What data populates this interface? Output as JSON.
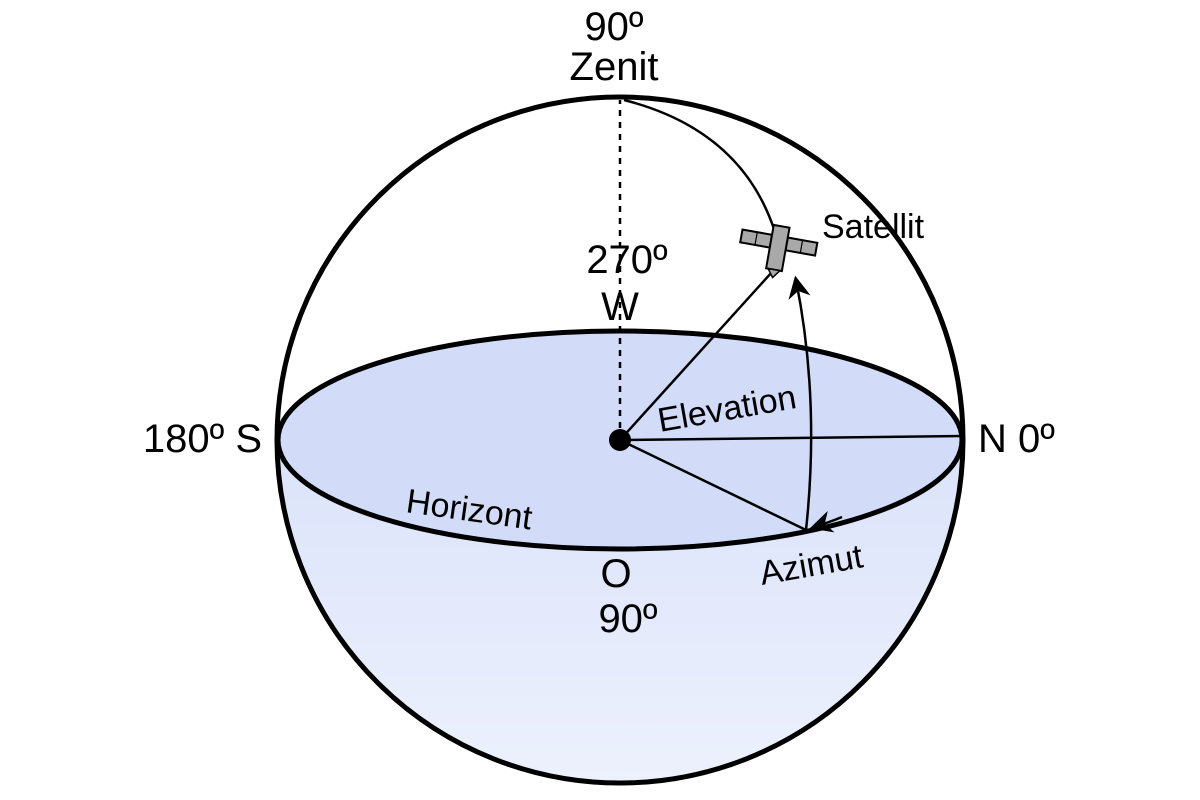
{
  "labels": {
    "zenith_degree": "90º",
    "zenith_name": "Zenit",
    "west_degree": "270º",
    "west_name": "W",
    "south": "180º S",
    "north": "N 0º",
    "east_name": "O",
    "east_degree": "90º",
    "satellite": "Satellit",
    "elevation": "Elevation",
    "horizon": "Horizont",
    "azimuth": "Azimut"
  },
  "icons": {
    "satellite": "satellite-icon",
    "observer": "observer-dot-icon"
  },
  "colors": {
    "sphere_fill_top": "#c9d5f7",
    "sphere_fill_bottom": "#edf1fd",
    "horizon_plane_fill": "#d2dcf8",
    "outline": "#000000",
    "satellite_body": "#a9a9a9"
  }
}
